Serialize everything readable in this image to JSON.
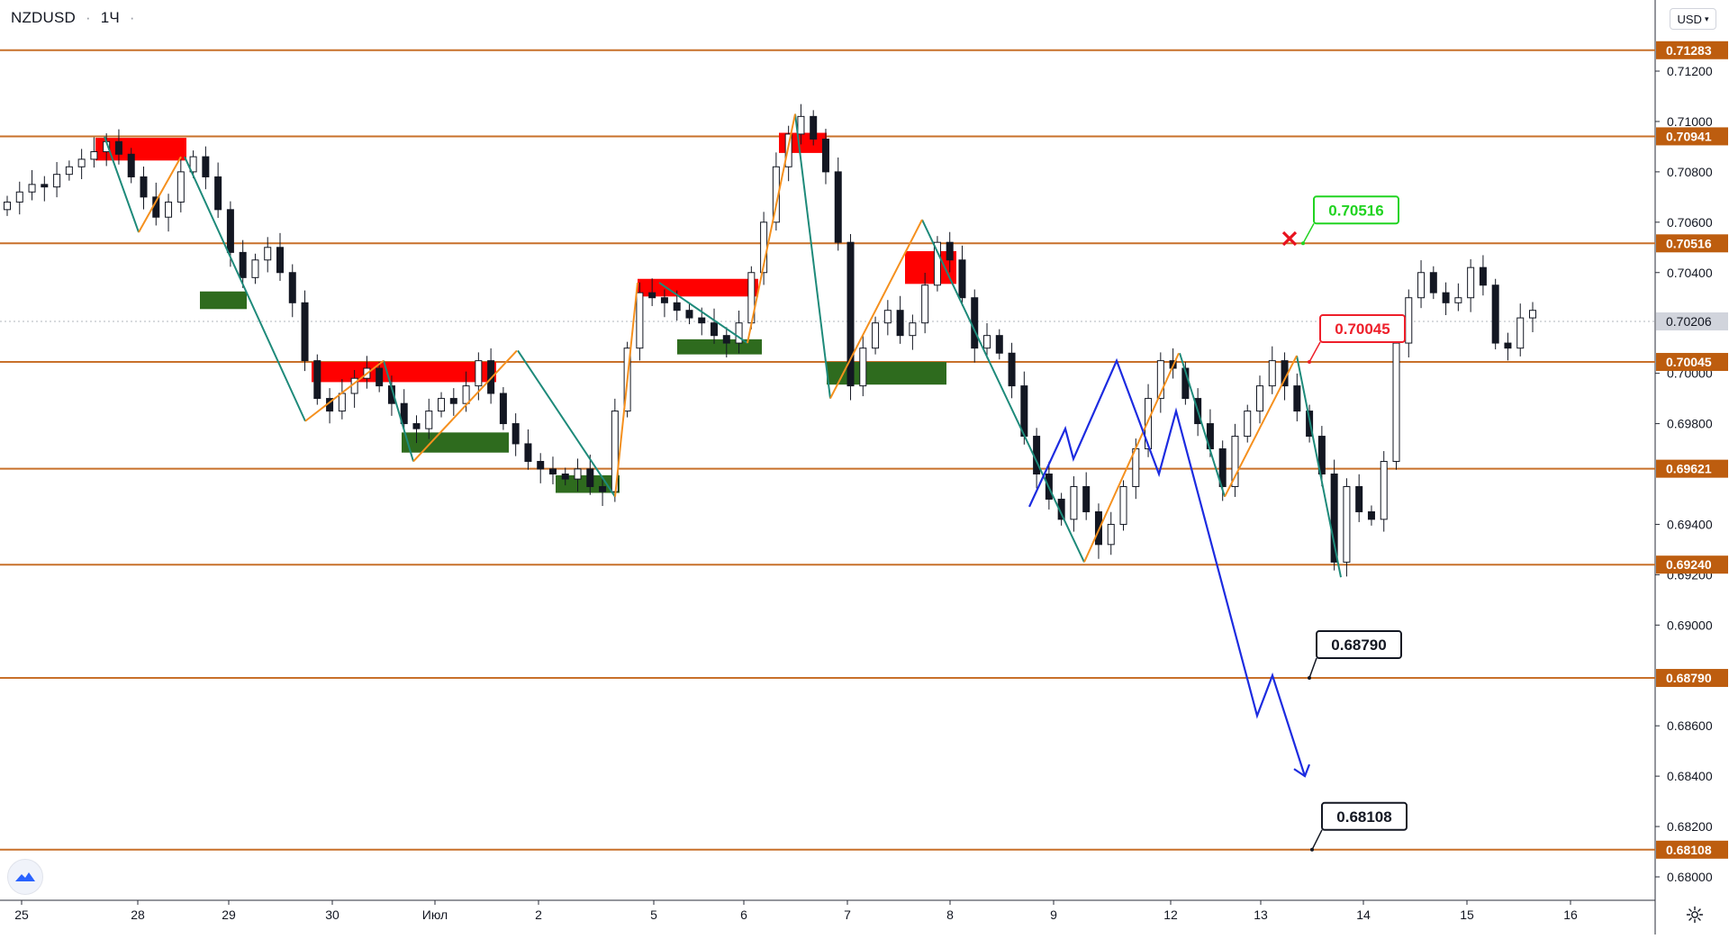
{
  "header": {
    "symbol": "NZDUSD",
    "interval": "1Ч",
    "dot": "·"
  },
  "currency_selector": {
    "label": "USD"
  },
  "colors": {
    "level_line": "#c8702a",
    "level_label_bg": "#bd5d0f",
    "last_price_bg": "#d1d4dc",
    "bull_candle": "#ffffff",
    "bear_candle": "#131722",
    "supply_zone": "#ff0000",
    "demand_zone": "#2e6b1e",
    "wave_green": "#1e8a7a",
    "wave_orange": "#f5901e",
    "forecast": "#1c2be0",
    "callout_green": "#21d321",
    "callout_red": "#ee1f2a",
    "callout_black": "#131722"
  },
  "chart_data": {
    "type": "candlestick",
    "symbol": "NZDUSD",
    "timeframe": "1H",
    "ylim": [
      0.6791,
      0.7139
    ],
    "price_axis_ticks": [
      "0.71200",
      "0.71000",
      "0.70800",
      "0.70600",
      "0.70400",
      "0.70000",
      "0.69800",
      "0.69400",
      "0.69200",
      "0.69000",
      "0.68600",
      "0.68400",
      "0.68200",
      "0.68000"
    ],
    "time_axis_ticks": [
      "25",
      "28",
      "29",
      "30",
      "Июл",
      "2",
      "5",
      "6",
      "7",
      "8",
      "9",
      "12",
      "13",
      "14",
      "15",
      "16"
    ],
    "last_price": 0.70206,
    "horizontal_levels": [
      {
        "price": 0.71283,
        "label": "0.71283"
      },
      {
        "price": 0.70941,
        "label": "0.70941"
      },
      {
        "price": 0.70516,
        "label": "0.70516"
      },
      {
        "price": 0.70045,
        "label": "0.70045"
      },
      {
        "price": 0.69621,
        "label": "0.69621"
      },
      {
        "price": 0.6924,
        "label": "0.69240"
      },
      {
        "price": 0.6879,
        "label": "0.68790"
      },
      {
        "price": 0.68108,
        "label": "0.68108"
      }
    ],
    "callouts": [
      {
        "label": "0.70516",
        "price": 0.70516,
        "style": "green"
      },
      {
        "label": "0.70045",
        "price": 0.70045,
        "style": "red"
      },
      {
        "label": "0.68790",
        "price": 0.6879,
        "style": "black"
      },
      {
        "label": "0.68108",
        "price": 0.68108,
        "style": "black"
      }
    ],
    "supply_zones": [
      {
        "from": 0.70935,
        "to": 0.70845
      },
      {
        "from": 0.70045,
        "to": 0.69965
      },
      {
        "from": 0.70375,
        "to": 0.70305
      },
      {
        "from": 0.70955,
        "to": 0.70875
      },
      {
        "from": 0.70485,
        "to": 0.70355
      }
    ],
    "demand_zones": [
      {
        "from": 0.70325,
        "to": 0.70255
      },
      {
        "from": 0.69765,
        "to": 0.69685
      },
      {
        "from": 0.69595,
        "to": 0.69525
      },
      {
        "from": 0.70135,
        "to": 0.70075
      },
      {
        "from": 0.70045,
        "to": 0.69955
      }
    ],
    "close_path": [
      [
        0.7068,
        0.7072,
        0.7075,
        0.7074,
        0.7079,
        0.7082,
        0.7085,
        0.7088,
        0.7092,
        0.7087,
        0.7078,
        0.707,
        0.7062,
        0.7068,
        0.708,
        0.7086,
        0.7078,
        0.7065,
        0.7048,
        0.7038,
        0.7045,
        0.705,
        0.704,
        0.7028,
        0.7005,
        0.699,
        0.6985,
        0.6992,
        0.6998,
        0.7002,
        0.6995,
        0.6988,
        0.698,
        0.6978,
        0.6985,
        0.699,
        0.6988,
        0.6995,
        0.7005,
        0.6992,
        0.698,
        0.6972,
        0.6965,
        0.6962,
        0.696,
        0.6958,
        0.6962,
        0.6955,
        0.6953,
        0.6985,
        0.701,
        0.7032,
        0.703,
        0.7028,
        0.7025,
        0.7022,
        0.702,
        0.7015,
        0.7012,
        0.702,
        0.704,
        0.706,
        0.7082,
        0.7095,
        0.7102,
        0.7093,
        0.708,
        0.7052,
        0.6995,
        0.701,
        0.702,
        0.7025,
        0.7015,
        0.702,
        0.7035,
        0.7052,
        0.7045,
        0.703,
        0.701,
        0.7015,
        0.7008,
        0.6995,
        0.6975,
        0.696,
        0.695,
        0.6942,
        0.6955,
        0.6945,
        0.6932,
        0.694,
        0.6955,
        0.697,
        0.699,
        0.7005,
        0.7002,
        0.699,
        0.698,
        0.697,
        0.6955,
        0.6975,
        0.6985,
        0.6995,
        0.7005,
        0.6995,
        0.6985,
        0.6975,
        0.696,
        0.6925,
        0.6955,
        0.6945,
        0.6942,
        0.6965,
        0.7012,
        0.703,
        0.704,
        0.7032,
        0.7028,
        0.703,
        0.7042,
        0.7035,
        0.7012,
        0.701,
        0.7022,
        0.7025
      ]
    ],
    "wave_lines": {
      "green": [
        [
          0.7094,
          0.7056
        ],
        [
          0.7086,
          0.6981
        ],
        [
          0.7005,
          0.6965
        ],
        [
          0.7009,
          0.6951
        ],
        [
          0.7036,
          0.7012
        ],
        [
          0.7103,
          0.699
        ],
        [
          0.7061,
          0.6925
        ],
        [
          0.7008,
          0.6951
        ],
        [
          0.7007,
          0.6919
        ]
      ],
      "orange": [
        [
          0.7056,
          0.7086
        ],
        [
          0.6981,
          0.7005
        ],
        [
          0.6965,
          0.7009
        ],
        [
          0.6951,
          0.7036
        ],
        [
          0.7012,
          0.7103
        ],
        [
          0.699,
          0.7061
        ],
        [
          0.6925,
          0.7008
        ],
        [
          0.6951,
          0.7007
        ]
      ]
    },
    "forecast_path": [
      0.6947,
      0.6978,
      0.6966,
      0.7005,
      0.696,
      0.6985,
      0.6864,
      0.688,
      0.684
    ]
  }
}
